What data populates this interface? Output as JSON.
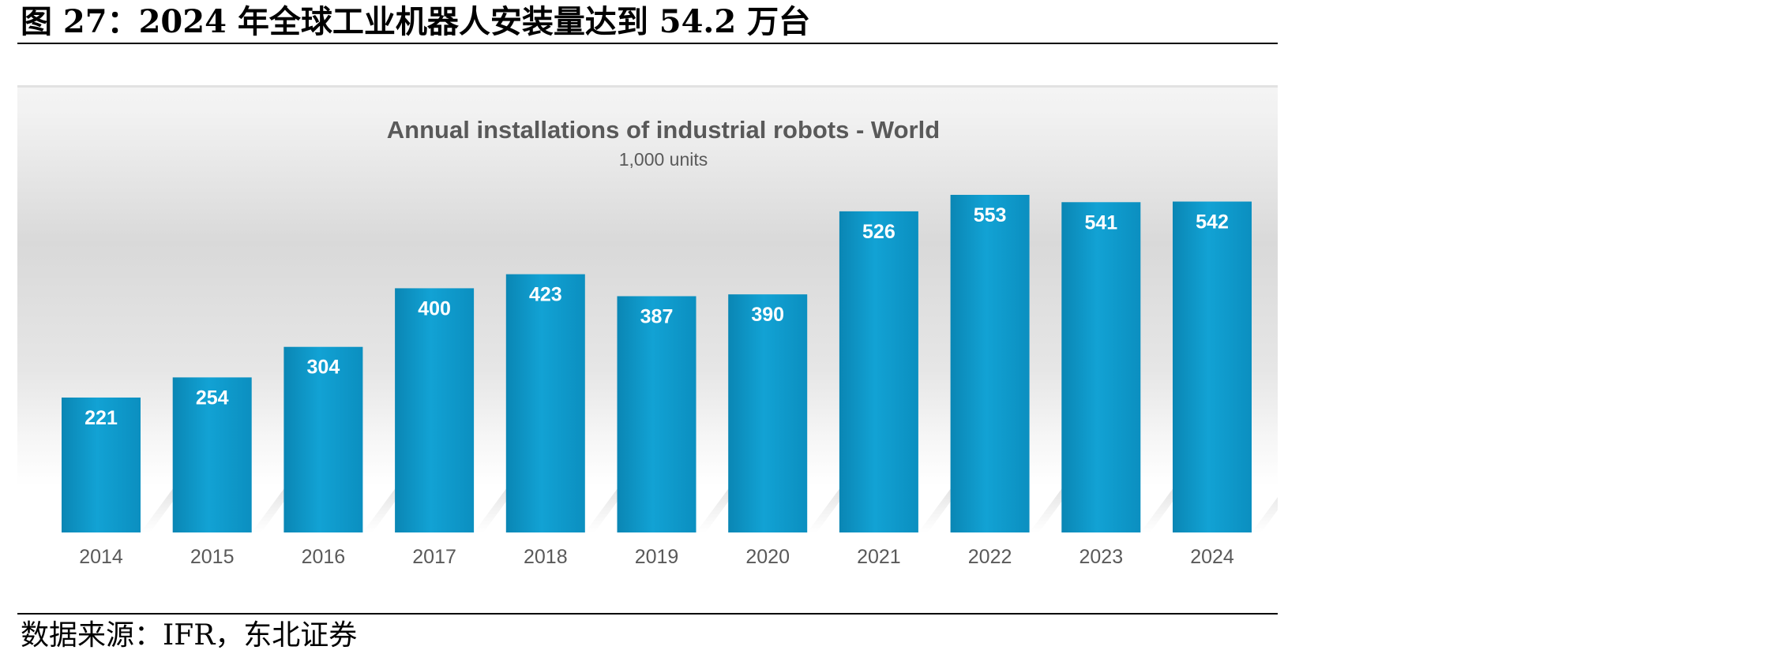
{
  "report": {
    "figure_title": "图 27：2024 年全球工业机器人安装量达到 54.2 万台",
    "source_note": "数据来源：IFR，东北证券"
  },
  "colors": {
    "bar": "#0b96c8",
    "bar_light": "#1aa8d8",
    "bar_dark": "#0a84b0",
    "text_gray": "#595959"
  },
  "chart_data": {
    "type": "bar",
    "title": "Annual installations of industrial robots - World",
    "subtitle": "1,000 units",
    "xlabel": "",
    "ylabel": "",
    "categories": [
      "2014",
      "2015",
      "2016",
      "2017",
      "2018",
      "2019",
      "2020",
      "2021",
      "2022",
      "2023",
      "2024"
    ],
    "values": [
      221,
      254,
      304,
      400,
      423,
      387,
      390,
      526,
      553,
      541,
      542
    ],
    "ylim": [
      0,
      553
    ],
    "grid": false,
    "legend": "none",
    "data_labels": true
  }
}
